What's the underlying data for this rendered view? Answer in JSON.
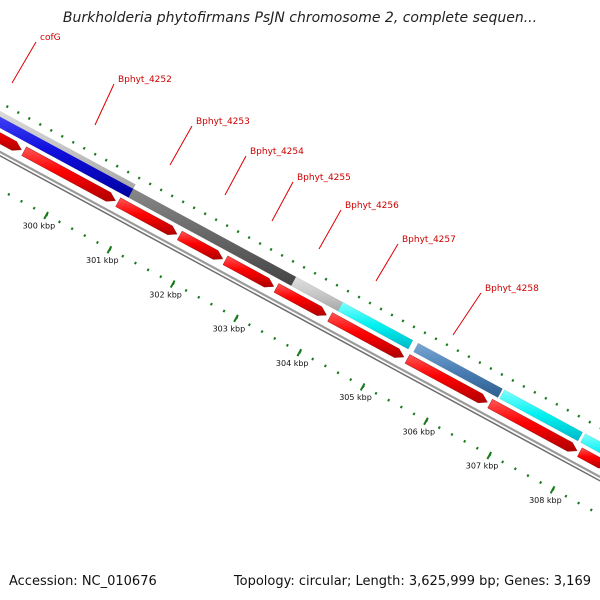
{
  "title": "Burkholderia phytofirmans PsJN chromosome 2, complete sequen...",
  "footer": {
    "accession": "Accession: NC_010676",
    "topology": "Topology: circular; Length: 3,625,999 bp; Genes: 3,169"
  },
  "colors": {
    "forward_gene": "#ff0000",
    "blue_feature": "#1010dd",
    "dark_gray_feature": "#666666",
    "light_gray_feature": "#c8c8c8",
    "cyan_feature": "#00f0f0",
    "steel_blue_feature": "#4a7fb5",
    "tick": "#1a7a1a",
    "backbone": "#888888",
    "label": "#cc0000"
  },
  "scale_ticks": [
    {
      "label": "300 kbp"
    },
    {
      "label": "301 kbp"
    },
    {
      "label": "302 kbp"
    },
    {
      "label": "303 kbp"
    },
    {
      "label": "304 kbp"
    },
    {
      "label": "305 kbp"
    },
    {
      "label": "306 kbp"
    },
    {
      "label": "307 kbp"
    },
    {
      "label": "308 kbp"
    }
  ],
  "gene_labels": [
    {
      "label": "cofG"
    },
    {
      "label": "Bphyt_4252"
    },
    {
      "label": "Bphyt_4253"
    },
    {
      "label": "Bphyt_4254"
    },
    {
      "label": "Bphyt_4255"
    },
    {
      "label": "Bphyt_4256"
    },
    {
      "label": "Bphyt_4257"
    },
    {
      "label": "Bphyt_4258"
    }
  ]
}
